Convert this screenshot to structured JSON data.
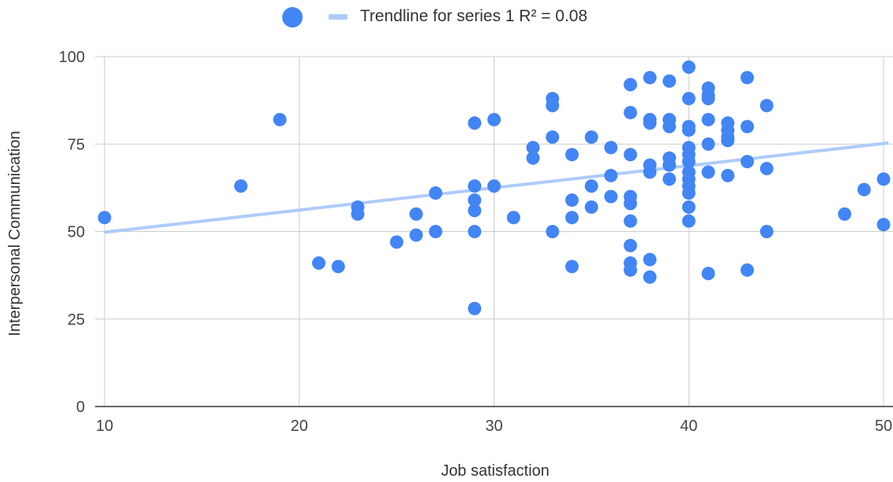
{
  "legend": {
    "marker_label": "",
    "trend_label": "Trendline for series 1 R² = 0.08"
  },
  "colors": {
    "points": "#4285f4",
    "trendline": "#aecbfa",
    "grid": "#cccccc",
    "axis": "#333333"
  },
  "chart_data": {
    "type": "scatter",
    "title": "",
    "xlabel": "Job satisfaction",
    "ylabel": "Interpersonal Communication",
    "xlim": [
      10,
      50
    ],
    "ylim": [
      0,
      100
    ],
    "x_ticks": [
      10,
      20,
      30,
      40,
      50
    ],
    "y_ticks": [
      0,
      25,
      50,
      75,
      100
    ],
    "grid": true,
    "legend_position": "top",
    "series": [
      {
        "points": [
          [
            10,
            54
          ],
          [
            17,
            63
          ],
          [
            19,
            82
          ],
          [
            21,
            41
          ],
          [
            22,
            40
          ],
          [
            23,
            57
          ],
          [
            23,
            55
          ],
          [
            25,
            47
          ],
          [
            26,
            55
          ],
          [
            26,
            49
          ],
          [
            27,
            61
          ],
          [
            27,
            50
          ],
          [
            29,
            81
          ],
          [
            29,
            63
          ],
          [
            29,
            59
          ],
          [
            29,
            56
          ],
          [
            29,
            50
          ],
          [
            29,
            28
          ],
          [
            30,
            82
          ],
          [
            30,
            63
          ],
          [
            31,
            54
          ],
          [
            32,
            74
          ],
          [
            32,
            71
          ],
          [
            33,
            88
          ],
          [
            33,
            86
          ],
          [
            33,
            77
          ],
          [
            33,
            50
          ],
          [
            34,
            72
          ],
          [
            34,
            59
          ],
          [
            34,
            54
          ],
          [
            34,
            40
          ],
          [
            35,
            77
          ],
          [
            35,
            63
          ],
          [
            35,
            57
          ],
          [
            36,
            74
          ],
          [
            36,
            66
          ],
          [
            36,
            60
          ],
          [
            37,
            92
          ],
          [
            37,
            84
          ],
          [
            37,
            72
          ],
          [
            37,
            60
          ],
          [
            37,
            58
          ],
          [
            37,
            53
          ],
          [
            37,
            46
          ],
          [
            37,
            41
          ],
          [
            37,
            39
          ],
          [
            38,
            94
          ],
          [
            38,
            82
          ],
          [
            38,
            81
          ],
          [
            38,
            69
          ],
          [
            38,
            67
          ],
          [
            38,
            42
          ],
          [
            38,
            37
          ],
          [
            39,
            93
          ],
          [
            39,
            82
          ],
          [
            39,
            80
          ],
          [
            39,
            71
          ],
          [
            39,
            69
          ],
          [
            39,
            65
          ],
          [
            40,
            97
          ],
          [
            40,
            88
          ],
          [
            40,
            80
          ],
          [
            40,
            79
          ],
          [
            40,
            74
          ],
          [
            40,
            72
          ],
          [
            40,
            70
          ],
          [
            40,
            67
          ],
          [
            40,
            65
          ],
          [
            40,
            63
          ],
          [
            40,
            61
          ],
          [
            40,
            57
          ],
          [
            40,
            53
          ],
          [
            41,
            91
          ],
          [
            41,
            89
          ],
          [
            41,
            88
          ],
          [
            41,
            82
          ],
          [
            41,
            75
          ],
          [
            41,
            67
          ],
          [
            41,
            38
          ],
          [
            42,
            81
          ],
          [
            42,
            79
          ],
          [
            42,
            77
          ],
          [
            42,
            76
          ],
          [
            42,
            66
          ],
          [
            43,
            94
          ],
          [
            43,
            80
          ],
          [
            43,
            70
          ],
          [
            43,
            39
          ],
          [
            44,
            86
          ],
          [
            44,
            68
          ],
          [
            44,
            50
          ],
          [
            48,
            55
          ],
          [
            49,
            62
          ],
          [
            50,
            65
          ],
          [
            50,
            52
          ]
        ]
      }
    ],
    "trendline": {
      "x": [
        10,
        50.5
      ],
      "y": [
        49.8,
        75.5
      ]
    }
  }
}
